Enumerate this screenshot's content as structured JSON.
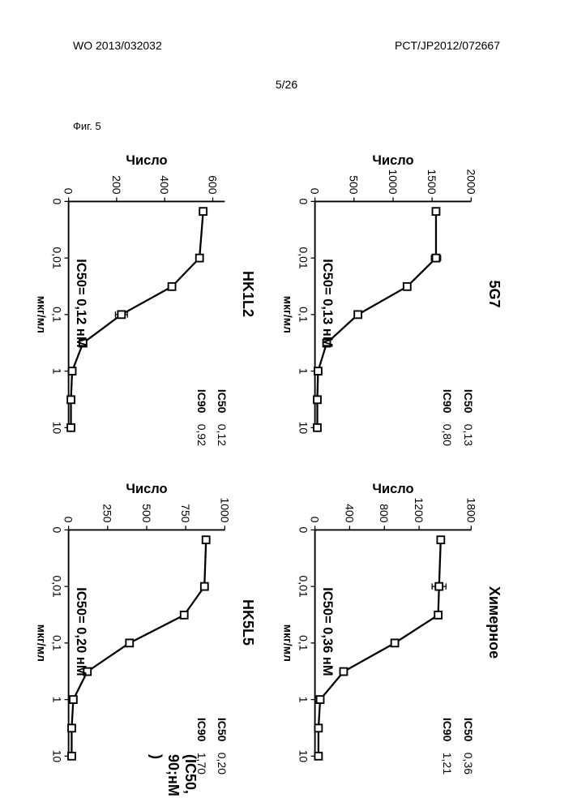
{
  "header": {
    "left": "WO 2013/032032",
    "right": "PCT/JP2012/072667",
    "page": "5/26"
  },
  "figure_label": "Фиг. 5",
  "caption": "(IC50, 90;нМ   )",
  "axis": {
    "xlabel": "мкг/мл",
    "ylabel": "Число",
    "xticks": [
      "0",
      "0,01",
      "0,1",
      "1",
      "10"
    ],
    "xvals": [
      0,
      0.01,
      0.1,
      1,
      10
    ]
  },
  "panels": [
    {
      "id": "5G7",
      "title": "5G7",
      "ic50_label": "IC50",
      "ic90_label": "IC90",
      "ic50": "0,13",
      "ic90": "0,80",
      "annotation": "IC50= 0,13 нМ",
      "yticks": [
        0,
        500,
        1000,
        1500,
        2000
      ],
      "ymax": 2000,
      "data": [
        {
          "x": 0.0015,
          "y": 1550,
          "err": 0
        },
        {
          "x": 0.01,
          "y": 1550,
          "err": 60
        },
        {
          "x": 0.032,
          "y": 1180,
          "err": 30
        },
        {
          "x": 0.1,
          "y": 550,
          "err": 30
        },
        {
          "x": 0.32,
          "y": 150,
          "err": 0
        },
        {
          "x": 1,
          "y": 40,
          "err": 0
        },
        {
          "x": 3.2,
          "y": 30,
          "err": 0
        },
        {
          "x": 10,
          "y": 30,
          "err": 0
        }
      ]
    },
    {
      "id": "chimeric",
      "title": "Химерное",
      "ic50_label": "IC50",
      "ic90_label": "IC90",
      "ic50": "0,36",
      "ic90": "1,21",
      "annotation": "IC50= 0,36 нМ",
      "yticks": [
        0,
        400,
        800,
        1200,
        1800
      ],
      "ymax": 1800,
      "data": [
        {
          "x": 0.0015,
          "y": 1450,
          "err": 0
        },
        {
          "x": 0.01,
          "y": 1430,
          "err": 80
        },
        {
          "x": 0.032,
          "y": 1420,
          "err": 40
        },
        {
          "x": 0.1,
          "y": 920,
          "err": 30
        },
        {
          "x": 0.32,
          "y": 330,
          "err": 20
        },
        {
          "x": 1,
          "y": 60,
          "err": 0
        },
        {
          "x": 3.2,
          "y": 40,
          "err": 0
        },
        {
          "x": 10,
          "y": 40,
          "err": 0
        }
      ]
    },
    {
      "id": "HK1L2",
      "title": "HK1L2",
      "ic50_label": "IC50",
      "ic90_label": "IC90",
      "ic50": "0,12",
      "ic90": "0,92",
      "annotation": "IC50= 0,12 нМ",
      "yticks": [
        0,
        200,
        400,
        600
      ],
      "ymax": 650,
      "data": [
        {
          "x": 0.0015,
          "y": 560,
          "err": 0
        },
        {
          "x": 0.01,
          "y": 545,
          "err": 15
        },
        {
          "x": 0.032,
          "y": 430,
          "err": 15
        },
        {
          "x": 0.1,
          "y": 220,
          "err": 25
        },
        {
          "x": 0.32,
          "y": 60,
          "err": 10
        },
        {
          "x": 1,
          "y": 15,
          "err": 0
        },
        {
          "x": 3.2,
          "y": 10,
          "err": 0
        },
        {
          "x": 10,
          "y": 10,
          "err": 0
        }
      ]
    },
    {
      "id": "HK5L5",
      "title": "HK5L5",
      "ic50_label": "IC50",
      "ic90_label": "IC90",
      "ic50": "0,20",
      "ic90": "1,70",
      "annotation": "IC50= 0,20 нМ",
      "yticks": [
        0,
        250,
        500,
        750,
        1000
      ],
      "ymax": 1000,
      "data": [
        {
          "x": 0.0015,
          "y": 880,
          "err": 0
        },
        {
          "x": 0.01,
          "y": 870,
          "err": 20
        },
        {
          "x": 0.032,
          "y": 740,
          "err": 20
        },
        {
          "x": 0.1,
          "y": 390,
          "err": 20
        },
        {
          "x": 0.32,
          "y": 120,
          "err": 10
        },
        {
          "x": 1,
          "y": 30,
          "err": 0
        },
        {
          "x": 3.2,
          "y": 20,
          "err": 0
        },
        {
          "x": 10,
          "y": 20,
          "err": 0
        }
      ]
    }
  ],
  "chart_style": {
    "line_color": "#000000",
    "marker_fill": "#ffffff",
    "marker_stroke": "#000000",
    "marker_size": 4,
    "background": "#ffffff",
    "axis_linewidth": 1.5
  }
}
